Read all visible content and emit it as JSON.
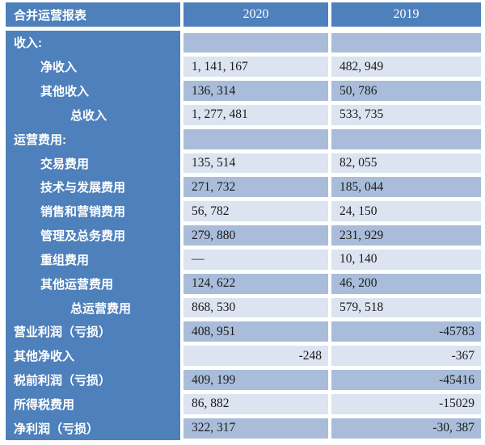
{
  "table": {
    "title": "合并运营报表",
    "columns": [
      "2020",
      "2019"
    ],
    "colors": {
      "header_blue": "#4e80bc",
      "cell_medium": "#a9bddb",
      "cell_light": "#dbe4f0",
      "label_text": "#ffffff",
      "value_text": "#1b1b1b"
    },
    "rows": [
      {
        "label": "收入:",
        "indent": 0,
        "shade": "medium",
        "values": [
          "",
          ""
        ],
        "align": [
          "left",
          "left"
        ]
      },
      {
        "label": "净收入",
        "indent": 1,
        "shade": "light",
        "values": [
          "1, 141, 167",
          "482, 949"
        ],
        "align": [
          "left",
          "left"
        ]
      },
      {
        "label": "其他收入",
        "indent": 1,
        "shade": "medium",
        "values": [
          "136, 314",
          "50, 786"
        ],
        "align": [
          "left",
          "left"
        ]
      },
      {
        "label": "总收入",
        "indent": 2,
        "shade": "light",
        "values": [
          "1, 277, 481",
          "533, 735"
        ],
        "align": [
          "left",
          "left"
        ]
      },
      {
        "label": "运营费用:",
        "indent": 0,
        "shade": "medium",
        "values": [
          "",
          ""
        ],
        "align": [
          "left",
          "left"
        ]
      },
      {
        "label": "交易费用",
        "indent": 1,
        "shade": "light",
        "values": [
          "135, 514",
          "82, 055"
        ],
        "align": [
          "left",
          "left"
        ]
      },
      {
        "label": "技术与发展费用",
        "indent": 1,
        "shade": "medium",
        "values": [
          "271, 732",
          "185, 044"
        ],
        "align": [
          "left",
          "left"
        ]
      },
      {
        "label": "销售和营销费用",
        "indent": 1,
        "shade": "light",
        "values": [
          "56, 782",
          "24, 150"
        ],
        "align": [
          "left",
          "left"
        ]
      },
      {
        "label": "管理及总务费用",
        "indent": 1,
        "shade": "medium",
        "values": [
          "279, 880",
          "231, 929"
        ],
        "align": [
          "left",
          "left"
        ]
      },
      {
        "label": "重组费用",
        "indent": 1,
        "shade": "light",
        "values": [
          "—",
          "10, 140"
        ],
        "align": [
          "left",
          "left"
        ]
      },
      {
        "label": "其他运营费用",
        "indent": 1,
        "shade": "medium",
        "values": [
          "124, 622",
          "46, 200"
        ],
        "align": [
          "left",
          "left"
        ]
      },
      {
        "label": "总运营费用",
        "indent": 2,
        "shade": "light",
        "values": [
          "868, 530",
          "579, 518"
        ],
        "align": [
          "left",
          "left"
        ]
      },
      {
        "label": "营业利润（亏损）",
        "indent": 0,
        "shade": "medium",
        "values": [
          "408, 951",
          "-45783"
        ],
        "align": [
          "left",
          "right"
        ]
      },
      {
        "label": "其他净收入",
        "indent": 0,
        "shade": "light",
        "values": [
          "-248",
          "-367"
        ],
        "align": [
          "right",
          "right"
        ]
      },
      {
        "label": "税前利润（亏损）",
        "indent": 0,
        "shade": "medium",
        "values": [
          "409, 199",
          "-45416"
        ],
        "align": [
          "left",
          "right"
        ]
      },
      {
        "label": "所得税费用",
        "indent": 0,
        "shade": "light",
        "values": [
          "86, 882",
          "-15029"
        ],
        "align": [
          "left",
          "right"
        ]
      },
      {
        "label": "净利润（亏损）",
        "indent": 0,
        "shade": "medium",
        "values": [
          "322, 317",
          "-30, 387"
        ],
        "align": [
          "left",
          "right"
        ]
      }
    ]
  }
}
